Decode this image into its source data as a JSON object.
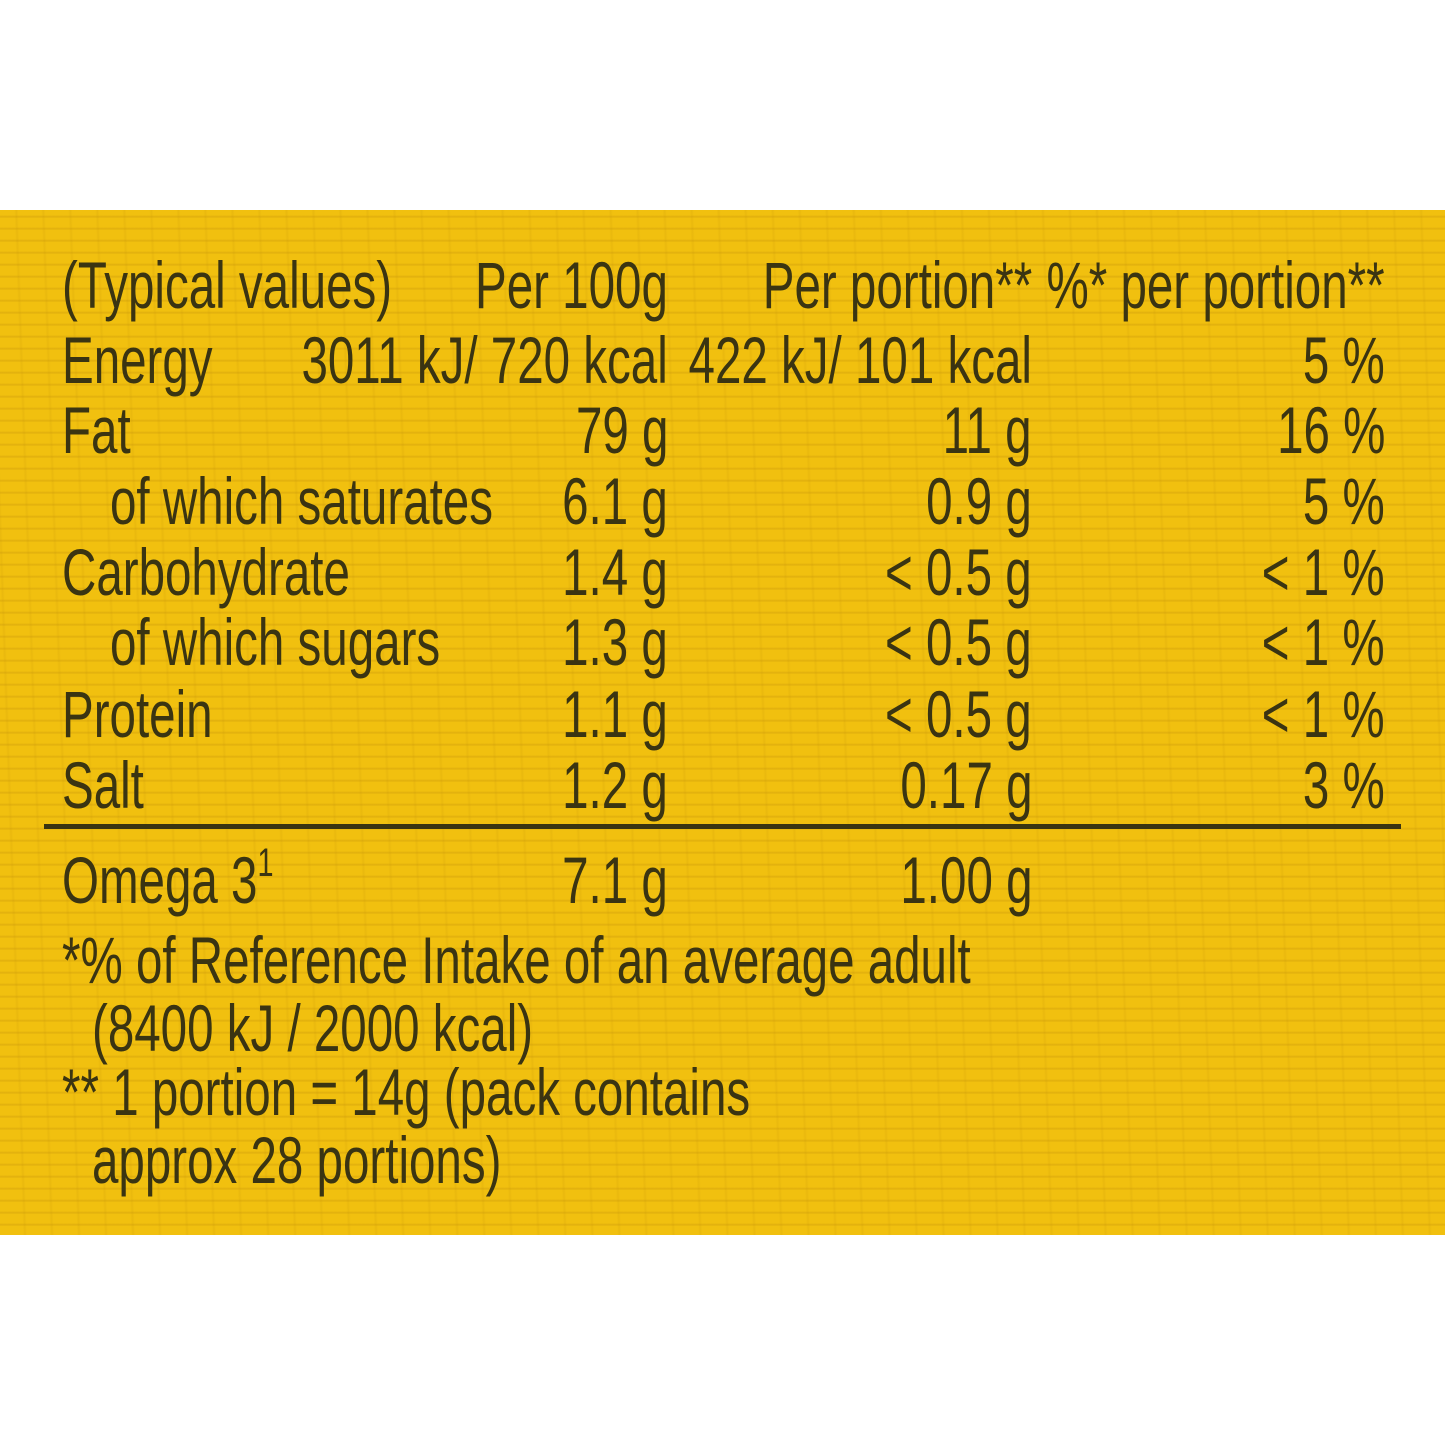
{
  "header": {
    "label": "(Typical values)",
    "per100": "Per 100g",
    "portion": "Per portion**",
    "pct": "%* per portion**"
  },
  "rows": [
    {
      "label": "Energy",
      "per100": "3011 kJ/ 720 kcal",
      "portion": "422 kJ/ 101 kcal",
      "pct": "5 %"
    },
    {
      "label": "Fat",
      "per100": "79 g",
      "portion": "11 g",
      "pct": "16 %"
    },
    {
      "label": "of which saturates",
      "per100": "6.1 g",
      "portion": "0.9 g",
      "pct": "5 %"
    },
    {
      "label": "Carbohydrate",
      "per100": "1.4 g",
      "portion": "< 0.5 g",
      "pct": "< 1 %"
    },
    {
      "label": "of which sugars",
      "per100": "1.3 g",
      "portion": "< 0.5 g",
      "pct": "< 1 %"
    },
    {
      "label": "Protein",
      "per100": "1.1 g",
      "portion": "< 0.5 g",
      "pct": "< 1 %"
    },
    {
      "label": "Salt",
      "per100": "1.2 g",
      "portion": "0.17 g",
      "pct": "3 %"
    }
  ],
  "omega": {
    "label": "Omega 3",
    "sup": "1",
    "per100": "7.1 g",
    "portion": "1.00 g"
  },
  "footnotes": [
    "*% of Reference Intake of an average adult",
    "(8400 kJ / 2000 kcal)",
    "** 1 portion = 14g (pack contains",
    "approx 28 portions)"
  ]
}
